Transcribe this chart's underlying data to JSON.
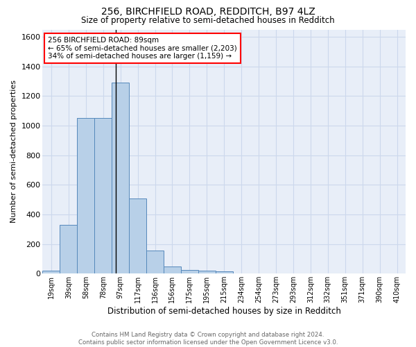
{
  "title1": "256, BIRCHFIELD ROAD, REDDITCH, B97 4LZ",
  "title2": "Size of property relative to semi-detached houses in Redditch",
  "xlabel": "Distribution of semi-detached houses by size in Redditch",
  "ylabel": "Number of semi-detached properties",
  "annotation_title": "256 BIRCHFIELD ROAD: 89sqm",
  "annotation_line2": "← 65% of semi-detached houses are smaller (2,203)",
  "annotation_line3": "34% of semi-detached houses are larger (1,159) →",
  "footer1": "Contains HM Land Registry data © Crown copyright and database right 2024.",
  "footer2": "Contains public sector information licensed under the Open Government Licence v3.0.",
  "bar_labels": [
    "19sqm",
    "39sqm",
    "58sqm",
    "78sqm",
    "97sqm",
    "117sqm",
    "136sqm",
    "156sqm",
    "175sqm",
    "195sqm",
    "215sqm",
    "234sqm",
    "254sqm",
    "273sqm",
    "293sqm",
    "312sqm",
    "332sqm",
    "351sqm",
    "371sqm",
    "390sqm",
    "410sqm"
  ],
  "bar_values": [
    20,
    330,
    1050,
    1050,
    1290,
    510,
    155,
    50,
    25,
    20,
    15,
    0,
    0,
    0,
    0,
    0,
    0,
    0,
    0,
    0,
    0
  ],
  "bar_color": "#b8d0e8",
  "bar_edge_color": "#5588bb",
  "ylim": [
    0,
    1650
  ],
  "yticks": [
    0,
    200,
    400,
    600,
    800,
    1000,
    1200,
    1400,
    1600
  ],
  "grid_color": "#ccd8ec",
  "bg_color": "#e8eef8",
  "property_line_index": 3.72
}
